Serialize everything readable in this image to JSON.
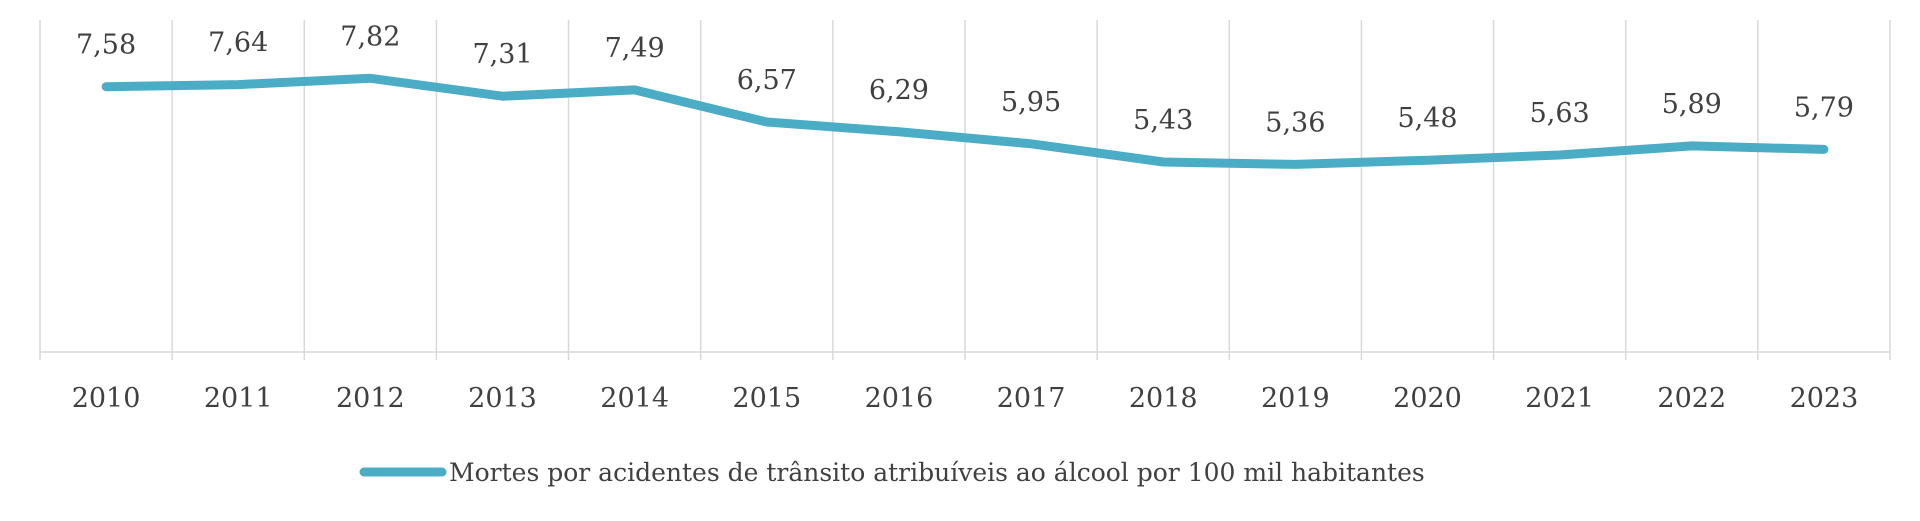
{
  "chart_data": {
    "type": "line",
    "categories": [
      "2010",
      "2011",
      "2012",
      "2013",
      "2014",
      "2015",
      "2016",
      "2017",
      "2018",
      "2019",
      "2020",
      "2021",
      "2022",
      "2023"
    ],
    "series": [
      {
        "name": "Mortes por acidentes de trânsito atribuíveis ao álcool por 100 mil habitantes",
        "values": [
          7.58,
          7.64,
          7.82,
          7.31,
          7.49,
          6.57,
          6.29,
          5.95,
          5.43,
          5.36,
          5.48,
          5.63,
          5.89,
          5.79
        ],
        "labels": [
          "7,58",
          "7,64",
          "7,82",
          "7,31",
          "7,49",
          "6,57",
          "6,29",
          "5,95",
          "5,43",
          "5,36",
          "5,48",
          "5,63",
          "5,89",
          "5,79"
        ],
        "color": "#4bacc6"
      }
    ],
    "ylim": [
      0,
      10
    ],
    "grid": "vertical",
    "legend_position": "bottom",
    "title": "",
    "xlabel": "",
    "ylabel": ""
  }
}
